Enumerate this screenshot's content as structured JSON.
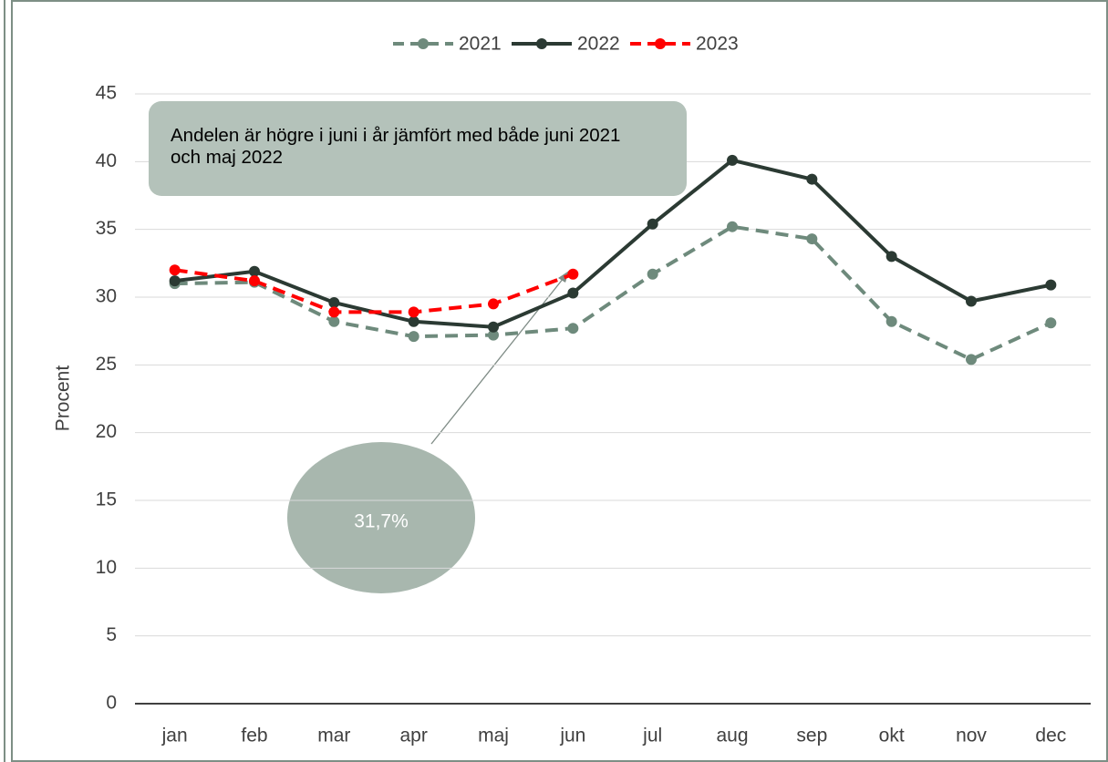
{
  "chart_data": {
    "type": "line",
    "categories": [
      "jan",
      "feb",
      "mar",
      "apr",
      "maj",
      "jun",
      "jul",
      "aug",
      "sep",
      "okt",
      "nov",
      "dec"
    ],
    "series": [
      {
        "name": "2021",
        "color": "#6e8a7c",
        "dash": true,
        "values": [
          31.0,
          31.1,
          28.2,
          27.1,
          27.2,
          27.7,
          31.7,
          35.2,
          34.3,
          28.2,
          25.4,
          28.1
        ]
      },
      {
        "name": "2022",
        "color": "#2b3a33",
        "dash": false,
        "values": [
          31.2,
          31.9,
          29.6,
          28.2,
          27.8,
          30.3,
          35.4,
          40.1,
          38.7,
          33.0,
          29.7,
          30.9
        ]
      },
      {
        "name": "2023",
        "color": "#ff0000",
        "dash": true,
        "values": [
          32.0,
          31.2,
          28.9,
          28.9,
          29.5,
          31.7,
          null,
          null,
          null,
          null,
          null,
          null
        ]
      }
    ],
    "y_label": "Procent",
    "ylim": [
      0,
      45
    ],
    "yticks": [
      0,
      5,
      10,
      15,
      20,
      25,
      30,
      35,
      40,
      45
    ],
    "grid": true,
    "legend": "top",
    "annotation": "Andelen är högre i juni i år jämfört med både juni 2021 och maj 2022",
    "callout": "31,7%"
  }
}
